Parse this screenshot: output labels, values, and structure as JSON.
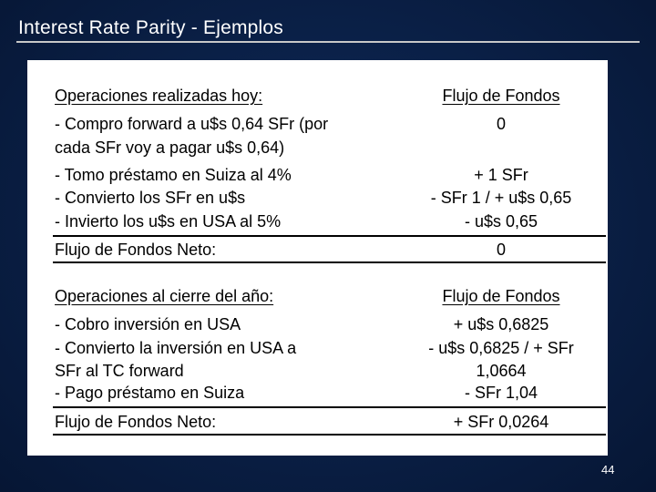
{
  "title": "Interest Rate Parity - Ejemplos",
  "section1": {
    "heading": "Operaciones realizadas hoy:",
    "flow_heading": "Flujo de Fondos",
    "lines": [
      "- Compro forward a u$s 0,64 SFr (por",
      "cada SFr voy a pagar u$s 0,64)",
      "- Tomo préstamo en Suiza al 4%",
      "- Convierto los SFr en u$s",
      "- Invierto los u$s en USA al 5%"
    ],
    "flows": [
      "0",
      "+ 1 SFr",
      "- SFr 1 / + u$s 0,65",
      "- u$s 0,65"
    ],
    "net_label": "Flujo de Fondos Neto:",
    "net_value": "0"
  },
  "section2": {
    "heading": "Operaciones al cierre del año:",
    "flow_heading": "Flujo de Fondos",
    "lines": [
      "- Cobro inversión en USA",
      "- Convierto la inversión en USA a",
      "SFr al TC forward",
      "- Pago préstamo en Suiza"
    ],
    "flows": [
      "+ u$s 0,6825",
      "- u$s 0,6825 / + SFr",
      "1,0664",
      "- SFr 1,04"
    ],
    "net_label": "Flujo de Fondos Neto:",
    "net_value": "+ SFr 0,0264"
  },
  "page_number": "44"
}
